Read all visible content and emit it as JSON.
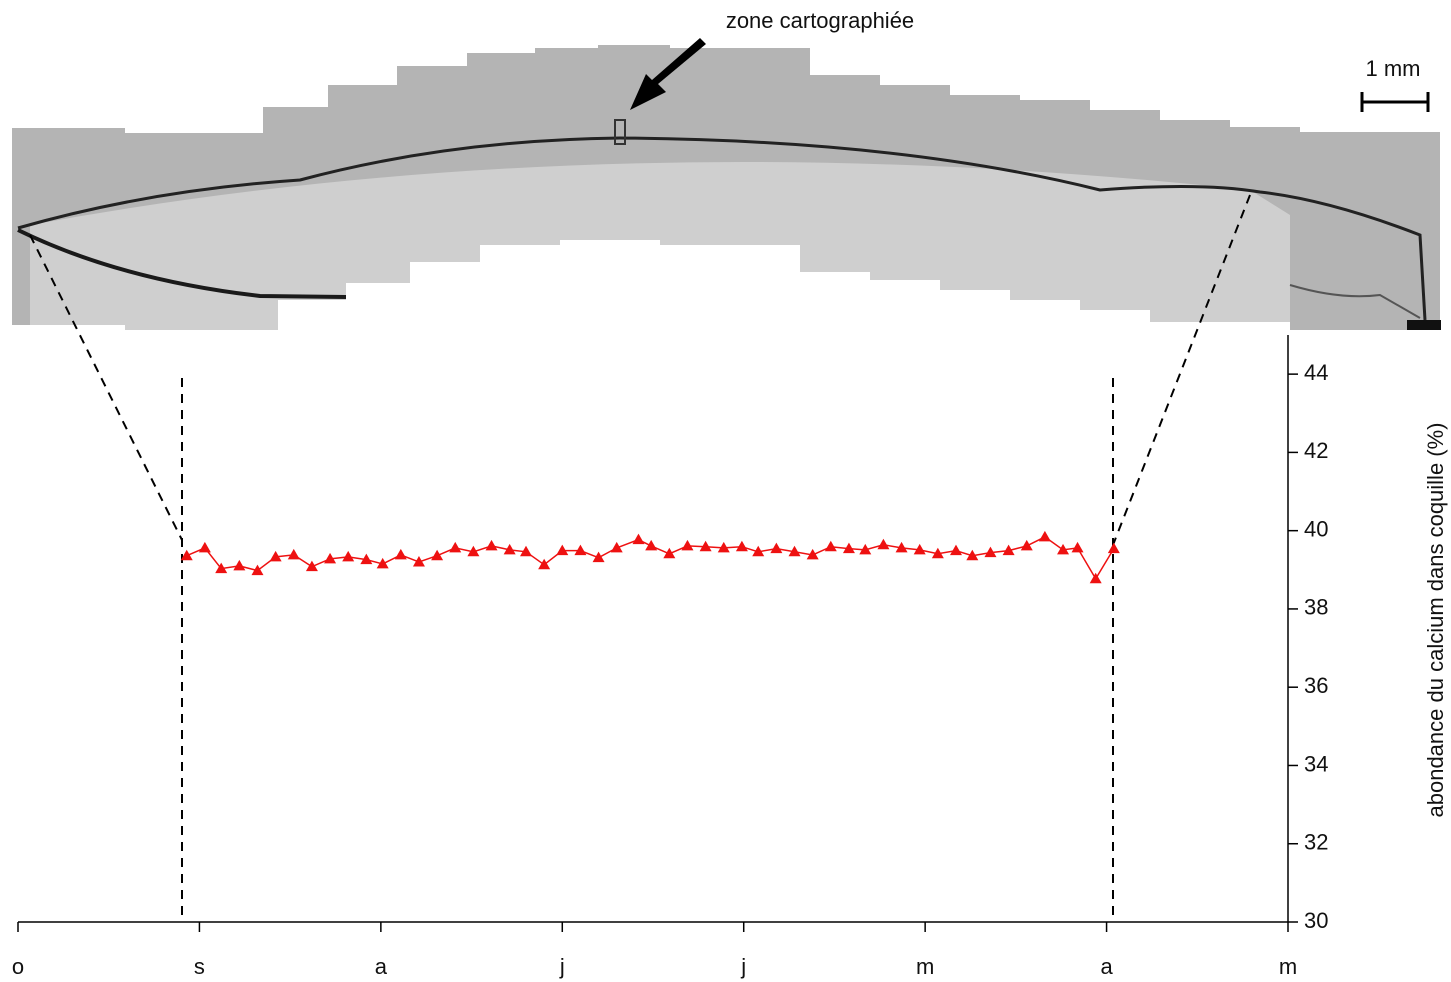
{
  "chart_data": {
    "type": "line",
    "annotations": [
      "zone cartographiée",
      "1 mm"
    ],
    "ylabel": "abondance du calcium dans coquille (%)",
    "x": [
      0.93,
      1.03,
      1.12,
      1.22,
      1.32,
      1.42,
      1.52,
      1.62,
      1.72,
      1.82,
      1.92,
      2.01,
      2.11,
      2.21,
      2.31,
      2.41,
      2.51,
      2.61,
      2.71,
      2.8,
      2.9,
      3.0,
      3.1,
      3.2,
      3.3,
      3.42,
      3.49,
      3.59,
      3.69,
      3.79,
      3.89,
      3.99,
      4.08,
      4.18,
      4.28,
      4.38,
      4.48,
      4.58,
      4.67,
      4.77,
      4.87,
      4.97,
      5.07,
      5.17,
      5.26,
      5.36,
      5.46,
      5.56,
      5.66,
      5.76,
      5.84,
      5.94,
      6.04
    ],
    "series": [
      {
        "color": "#ee1111",
        "values": [
          39.36,
          39.56,
          39.03,
          39.1,
          38.98,
          39.33,
          39.38,
          39.08,
          39.28,
          39.33,
          39.26,
          39.15,
          39.38,
          39.2,
          39.36,
          39.56,
          39.46,
          39.61,
          39.51,
          39.46,
          39.13,
          39.49,
          39.49,
          39.31,
          39.56,
          39.77,
          39.61,
          39.41,
          39.61,
          39.59,
          39.56,
          39.59,
          39.46,
          39.54,
          39.46,
          39.38,
          39.59,
          39.54,
          39.51,
          39.64,
          39.56,
          39.51,
          39.41,
          39.49,
          39.36,
          39.44,
          39.49,
          39.61,
          39.84,
          39.51,
          39.56,
          38.77,
          39.54
        ]
      }
    ],
    "xlim": [
      0,
      7
    ],
    "xticks": [
      {
        "value": 0,
        "label": "o"
      },
      {
        "value": 1,
        "label": "s"
      },
      {
        "value": 2,
        "label": "a"
      },
      {
        "value": 3,
        "label": "j"
      },
      {
        "value": 4,
        "label": "j"
      },
      {
        "value": 5,
        "label": "m"
      },
      {
        "value": 6,
        "label": "a"
      },
      {
        "value": 7,
        "label": "m"
      }
    ],
    "ylim": [
      30,
      45
    ],
    "yticks": [
      30,
      32,
      34,
      36,
      38,
      40,
      42,
      44
    ]
  }
}
